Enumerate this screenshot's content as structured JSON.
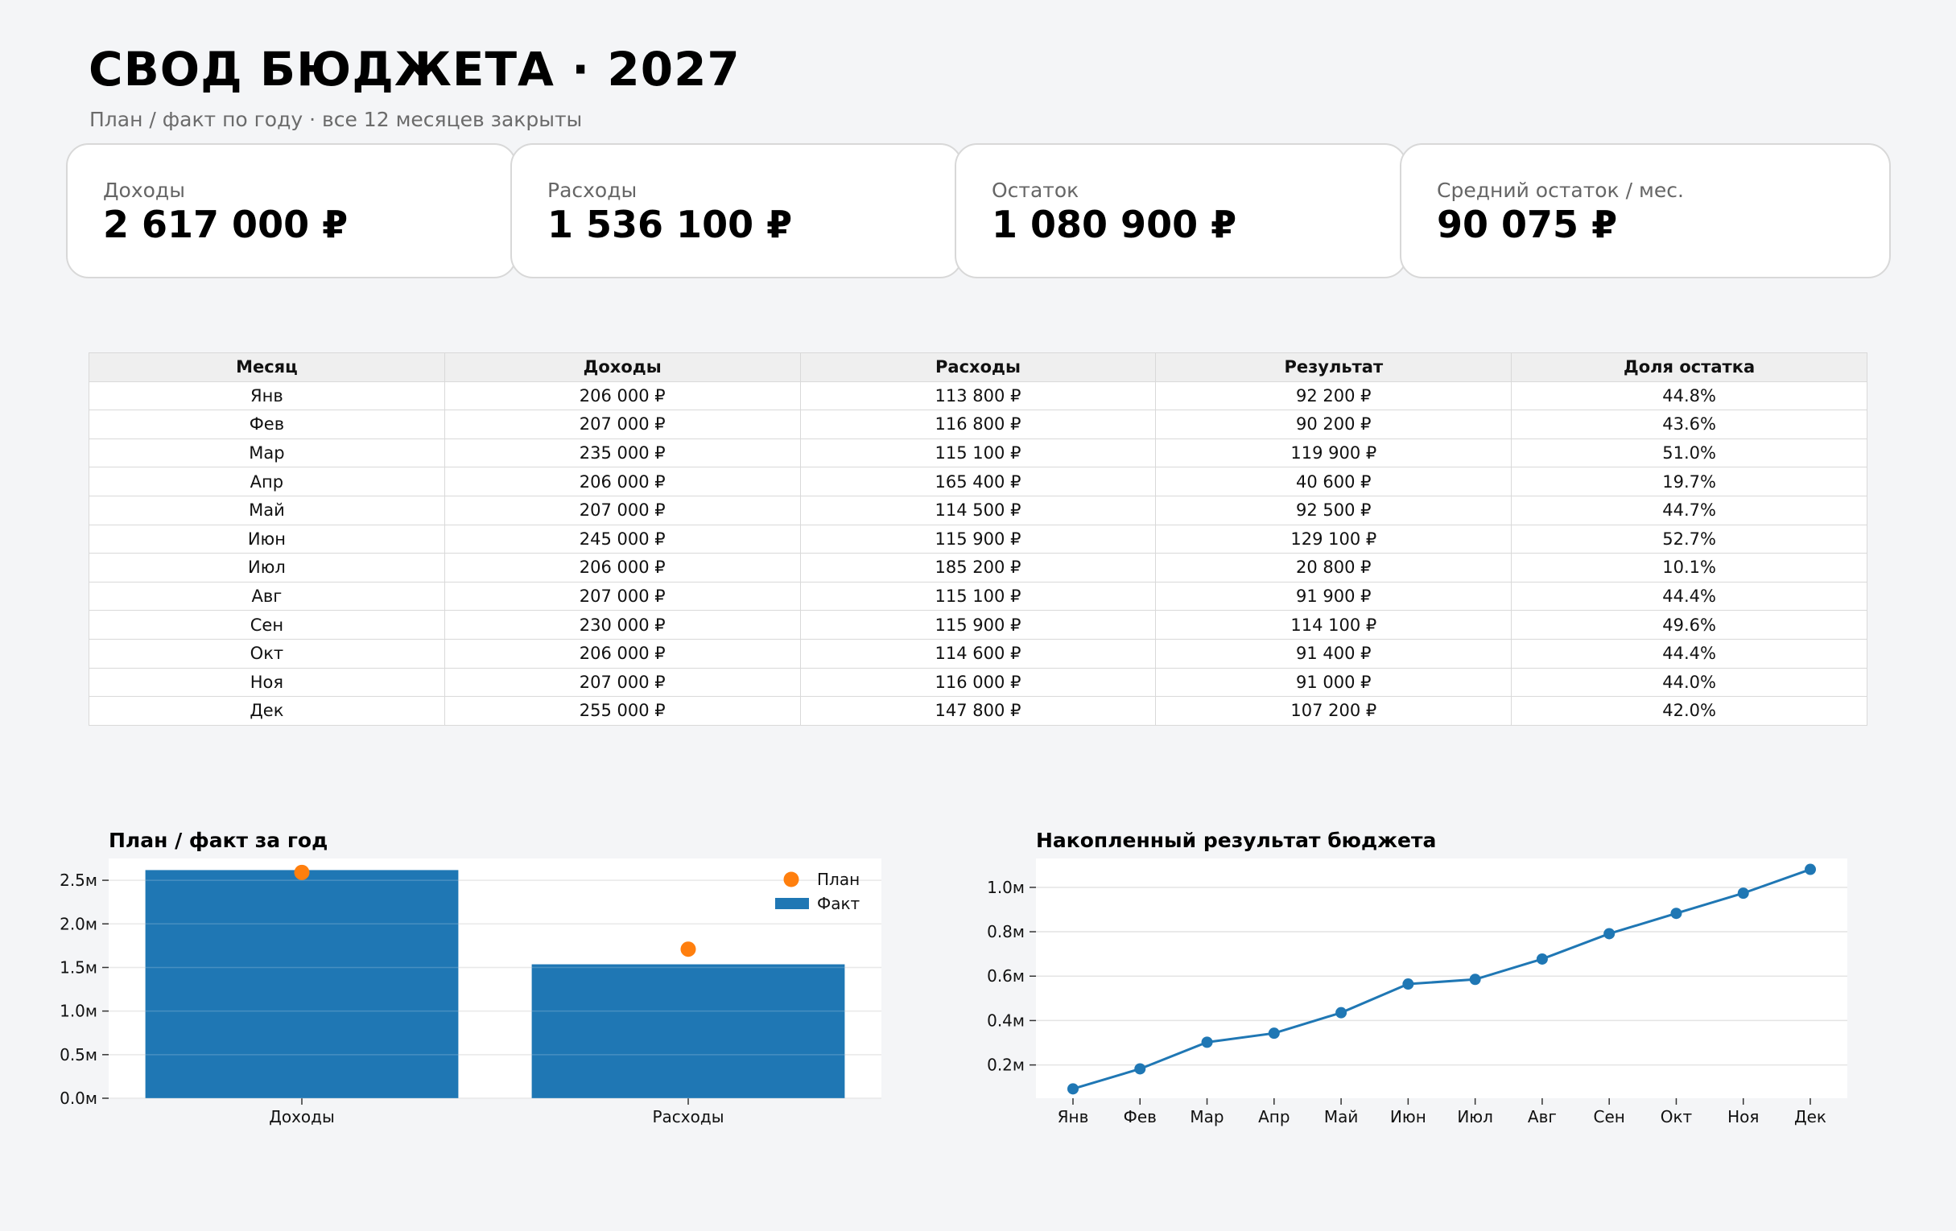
{
  "header": {
    "title": "СВОД БЮДЖЕТА · 2027",
    "subtitle": "План / факт по году · все 12 месяцев закрыты"
  },
  "kpis": [
    {
      "label": "Доходы",
      "value": "2 617 000 ₽"
    },
    {
      "label": "Расходы",
      "value": "1 536 100 ₽"
    },
    {
      "label": "Остаток",
      "value": "1 080 900 ₽"
    },
    {
      "label": "Средний остаток / мес.",
      "value": "90 075 ₽"
    }
  ],
  "table": {
    "headers": [
      "Месяц",
      "Доходы",
      "Расходы",
      "Результат",
      "Доля остатка"
    ],
    "rows": [
      [
        "Янв",
        "206 000 ₽",
        "113 800 ₽",
        "92 200 ₽",
        "44.8%"
      ],
      [
        "Фев",
        "207 000 ₽",
        "116 800 ₽",
        "90 200 ₽",
        "43.6%"
      ],
      [
        "Мар",
        "235 000 ₽",
        "115 100 ₽",
        "119 900 ₽",
        "51.0%"
      ],
      [
        "Апр",
        "206 000 ₽",
        "165 400 ₽",
        "40 600 ₽",
        "19.7%"
      ],
      [
        "Май",
        "207 000 ₽",
        "114 500 ₽",
        "92 500 ₽",
        "44.7%"
      ],
      [
        "Июн",
        "245 000 ₽",
        "115 900 ₽",
        "129 100 ₽",
        "52.7%"
      ],
      [
        "Июл",
        "206 000 ₽",
        "185 200 ₽",
        "20 800 ₽",
        "10.1%"
      ],
      [
        "Авг",
        "207 000 ₽",
        "115 100 ₽",
        "91 900 ₽",
        "44.4%"
      ],
      [
        "Сен",
        "230 000 ₽",
        "115 900 ₽",
        "114 100 ₽",
        "49.6%"
      ],
      [
        "Окт",
        "206 000 ₽",
        "114 600 ₽",
        "91 400 ₽",
        "44.4%"
      ],
      [
        "Ноя",
        "207 000 ₽",
        "116 000 ₽",
        "91 000 ₽",
        "44.0%"
      ],
      [
        "Дек",
        "255 000 ₽",
        "147 800 ₽",
        "107 200 ₽",
        "42.0%"
      ]
    ]
  },
  "chart_data": [
    {
      "type": "bar",
      "title": "План / факт за год",
      "categories": [
        "Доходы",
        "Расходы"
      ],
      "series": [
        {
          "name": "Факт",
          "kind": "bar",
          "values": [
            2617000,
            1536100
          ],
          "color": "#1f77b4"
        },
        {
          "name": "План",
          "kind": "point",
          "values": [
            2590000,
            1710000
          ],
          "color": "#ff7f0e"
        }
      ],
      "ylim": [
        0,
        2750000
      ],
      "yticks": [
        0,
        500000,
        1000000,
        1500000,
        2000000,
        2500000
      ],
      "ytick_labels": [
        "0.0м",
        "0.5м",
        "1.0м",
        "1.5м",
        "2.0м",
        "2.5м"
      ],
      "legend": "top-right",
      "grid": true
    },
    {
      "type": "line",
      "title": "Накопленный результат бюджета",
      "categories": [
        "Янв",
        "Фев",
        "Мар",
        "Апр",
        "Май",
        "Июн",
        "Июл",
        "Авг",
        "Сен",
        "Окт",
        "Ноя",
        "Дек"
      ],
      "series": [
        {
          "values": [
            92200,
            182400,
            302300,
            342900,
            435400,
            564500,
            585300,
            677200,
            791300,
            882700,
            973700,
            1080900
          ],
          "color": "#1f77b4"
        }
      ],
      "ylim": [
        50000,
        1130000
      ],
      "yticks": [
        200000,
        400000,
        600000,
        800000,
        1000000
      ],
      "ytick_labels": [
        "0.2м",
        "0.4м",
        "0.6м",
        "0.8м",
        "1.0м"
      ],
      "grid": true
    }
  ]
}
